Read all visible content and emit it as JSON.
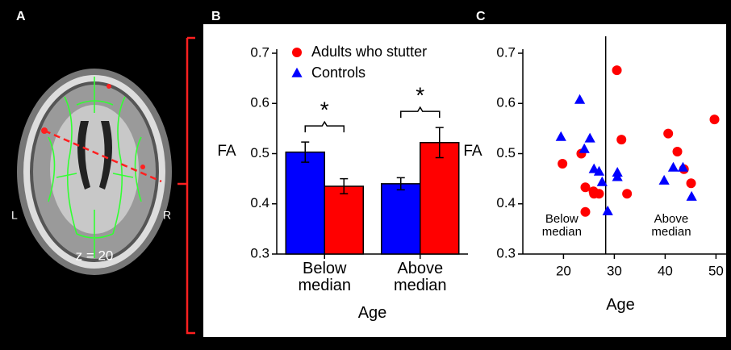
{
  "panel_labels": [
    "A",
    "B",
    "C"
  ],
  "brain": {
    "left_label": "L",
    "right_label": "R",
    "slice_label": "z = 20"
  },
  "chart_data": [
    {
      "type": "bar",
      "ylabel": "FA",
      "xlabel": "Age",
      "categories": [
        "Below\nmedian",
        "Above\nmedian"
      ],
      "series": [
        {
          "name": "Controls",
          "color": "#0000ff",
          "marker": "triangle",
          "values": [
            0.503,
            0.44
          ],
          "errors": [
            0.02,
            0.012
          ]
        },
        {
          "name": "Adults who stutter",
          "color": "#ff0000",
          "marker": "circle",
          "values": [
            0.435,
            0.522
          ],
          "errors": [
            0.015,
            0.03
          ]
        }
      ],
      "significance": [
        "*",
        "*"
      ],
      "ylim": [
        0.3,
        0.7
      ],
      "yticks": [
        0.3,
        0.4,
        0.5,
        0.6,
        0.7
      ],
      "legend": "upper left"
    },
    {
      "type": "scatter",
      "ylabel": "FA",
      "xlabel": "Age",
      "series": [
        {
          "name": "Adults who stutter",
          "color": "#ff0000",
          "marker": "circle",
          "x": [
            30.5,
            19.8,
            23.5,
            24.3,
            24.3,
            25.9,
            26.0,
            27.0,
            31.4,
            32.5,
            40.6,
            42.4,
            43.7,
            45.1,
            49.7
          ],
          "values": [
            0.666,
            0.48,
            0.5,
            0.433,
            0.384,
            0.425,
            0.42,
            0.42,
            0.528,
            0.42,
            0.54,
            0.504,
            0.469,
            0.441,
            0.568
          ]
        },
        {
          "name": "Controls",
          "color": "#0000ff",
          "marker": "triangle",
          "x": [
            19.5,
            23.2,
            24.1,
            25.2,
            26.0,
            27.0,
            27.6,
            28.7,
            30.6,
            30.6,
            39.8,
            41.6,
            43.5,
            45.2
          ],
          "values": [
            0.533,
            0.607,
            0.509,
            0.53,
            0.469,
            0.464,
            0.443,
            0.385,
            0.462,
            0.453,
            0.446,
            0.472,
            0.472,
            0.414
          ]
        }
      ],
      "median_x": 28.3,
      "annotations": [
        "Below\nmedian",
        "Above\nmedian"
      ],
      "xlim": [
        12,
        52
      ],
      "xticks": [
        20,
        30,
        40,
        50
      ],
      "ylim": [
        0.3,
        0.7
      ],
      "yticks": [
        0.3,
        0.4,
        0.5,
        0.6,
        0.7
      ]
    }
  ]
}
